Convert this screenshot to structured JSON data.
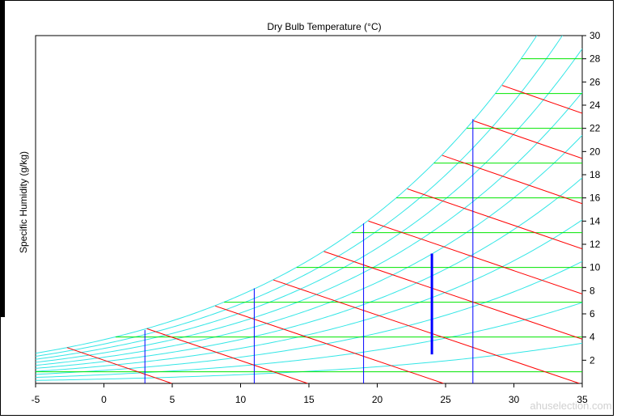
{
  "chart_data": {
    "type": "line",
    "title": "Dry Bulb Temperature (°C)",
    "xlabel": "",
    "ylabel": "Specific Humidity (g/kg)",
    "xlim": [
      -5,
      35
    ],
    "ylim": [
      0,
      30
    ],
    "x_ticks": [
      -5,
      0,
      5,
      10,
      15,
      20,
      25,
      30,
      35
    ],
    "y_ticks": [
      2,
      4,
      6,
      8,
      10,
      12,
      14,
      16,
      18,
      20,
      22,
      24,
      26,
      28,
      30
    ],
    "y_axis_side": "right",
    "grid": false,
    "relative_humidity_curves_percent": [
      10,
      20,
      30,
      40,
      50,
      60,
      70,
      80,
      90,
      100
    ],
    "humidity_lines_g_per_kg": [
      1,
      4,
      7,
      10,
      13,
      16,
      19,
      22,
      25,
      28
    ],
    "enthalpy_lines_kj_per_kg": [
      5,
      15,
      25,
      35,
      45,
      55,
      65,
      75,
      85,
      95
    ],
    "vertical_markers": [
      {
        "x": 3,
        "y_top": 4.6
      },
      {
        "x": 11,
        "y_top": 8.2
      },
      {
        "x": 19,
        "y_top": 13.8
      },
      {
        "x": 27,
        "y_top": 22.8
      }
    ],
    "process_line": {
      "x": 24,
      "y": [
        2.5,
        11.2
      ]
    },
    "colors": {
      "rh_curves": "#33e6e6",
      "humidity_lines": "#00e600",
      "enthalpy_lines": "#ff0000",
      "markers": "#0000ff"
    }
  },
  "watermark": "ahuselection.com"
}
